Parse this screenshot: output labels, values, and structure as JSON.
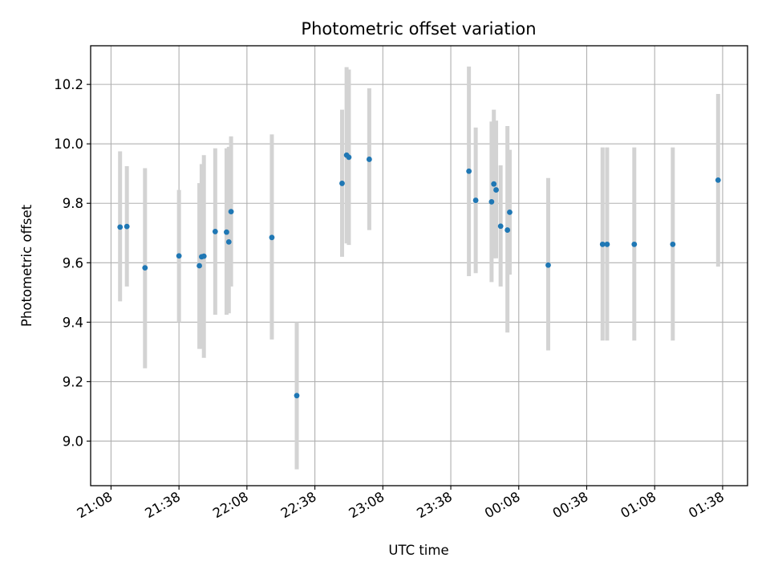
{
  "chart_data": {
    "type": "scatter",
    "title": "Photometric offset variation",
    "xlabel": "UTC time",
    "ylabel": "Photometric offset",
    "x_axis": {
      "kind": "time",
      "range": [
        "2023-01-01T20:59:00",
        "2023-01-02T01:49:00"
      ],
      "ticks": [
        {
          "t": "2023-01-01T21:08:00",
          "label": "21:08"
        },
        {
          "t": "2023-01-01T21:38:00",
          "label": "21:38"
        },
        {
          "t": "2023-01-01T22:08:00",
          "label": "22:08"
        },
        {
          "t": "2023-01-01T22:38:00",
          "label": "22:38"
        },
        {
          "t": "2023-01-01T23:08:00",
          "label": "23:08"
        },
        {
          "t": "2023-01-01T23:38:00",
          "label": "23:38"
        },
        {
          "t": "2023-01-02T00:08:00",
          "label": "00:08"
        },
        {
          "t": "2023-01-02T00:38:00",
          "label": "00:38"
        },
        {
          "t": "2023-01-02T01:08:00",
          "label": "01:08"
        },
        {
          "t": "2023-01-02T01:38:00",
          "label": "01:38"
        }
      ]
    },
    "y_axis": {
      "range": [
        8.85,
        10.33
      ],
      "ticks": [
        9.0,
        9.2,
        9.4,
        9.6,
        9.8,
        10.0,
        10.2
      ],
      "tick_labels": [
        "9.0",
        "9.2",
        "9.4",
        "9.6",
        "9.8",
        "10.0",
        "10.2"
      ]
    },
    "grid": true,
    "colors": {
      "point": "#1f77b4",
      "errorbar": "#d3d3d3",
      "grid": "#b0b0b0"
    },
    "points": [
      {
        "t": "2023-01-01T21:12:00",
        "y": 9.72,
        "lo": 9.47,
        "hi": 9.975
      },
      {
        "t": "2023-01-01T21:15:00",
        "y": 9.722,
        "lo": 9.52,
        "hi": 9.925
      },
      {
        "t": "2023-01-01T21:23:00",
        "y": 9.583,
        "lo": 9.245,
        "hi": 9.918
      },
      {
        "t": "2023-01-01T21:38:00",
        "y": 9.623,
        "lo": 9.4,
        "hi": 9.845
      },
      {
        "t": "2023-01-01T21:47:00",
        "y": 9.59,
        "lo": 9.31,
        "hi": 9.868
      },
      {
        "t": "2023-01-01T21:48:00",
        "y": 9.62,
        "lo": 9.31,
        "hi": 9.932
      },
      {
        "t": "2023-01-01T21:49:00",
        "y": 9.622,
        "lo": 9.28,
        "hi": 9.962
      },
      {
        "t": "2023-01-01T21:54:00",
        "y": 9.705,
        "lo": 9.425,
        "hi": 9.985
      },
      {
        "t": "2023-01-01T21:59:00",
        "y": 9.703,
        "lo": 9.425,
        "hi": 9.985
      },
      {
        "t": "2023-01-01T22:00:00",
        "y": 9.67,
        "lo": 9.43,
        "hi": 9.99
      },
      {
        "t": "2023-01-01T22:01:00",
        "y": 9.772,
        "lo": 9.52,
        "hi": 10.025
      },
      {
        "t": "2023-01-01T22:19:00",
        "y": 9.685,
        "lo": 9.342,
        "hi": 10.032
      },
      {
        "t": "2023-01-01T22:30:00",
        "y": 9.153,
        "lo": 8.905,
        "hi": 9.4
      },
      {
        "t": "2023-01-01T22:50:00",
        "y": 9.867,
        "lo": 9.62,
        "hi": 10.115
      },
      {
        "t": "2023-01-01T22:52:00",
        "y": 9.962,
        "lo": 9.665,
        "hi": 10.258
      },
      {
        "t": "2023-01-01T22:53:00",
        "y": 9.955,
        "lo": 9.66,
        "hi": 10.25
      },
      {
        "t": "2023-01-01T23:02:00",
        "y": 9.948,
        "lo": 9.71,
        "hi": 10.187
      },
      {
        "t": "2023-01-01T23:46:00",
        "y": 9.908,
        "lo": 9.555,
        "hi": 10.26
      },
      {
        "t": "2023-01-01T23:49:00",
        "y": 9.81,
        "lo": 9.565,
        "hi": 10.055
      },
      {
        "t": "2023-01-01T23:56:00",
        "y": 9.805,
        "lo": 9.535,
        "hi": 10.075
      },
      {
        "t": "2023-01-01T23:57:00",
        "y": 9.865,
        "lo": 9.615,
        "hi": 10.115
      },
      {
        "t": "2023-01-01T23:58:00",
        "y": 9.845,
        "lo": 9.615,
        "hi": 10.078
      },
      {
        "t": "2023-01-02T00:00:00",
        "y": 9.723,
        "lo": 9.52,
        "hi": 9.928
      },
      {
        "t": "2023-01-02T00:03:00",
        "y": 9.71,
        "lo": 9.365,
        "hi": 10.06
      },
      {
        "t": "2023-01-02T00:04:00",
        "y": 9.77,
        "lo": 9.56,
        "hi": 9.98
      },
      {
        "t": "2023-01-02T00:21:00",
        "y": 9.592,
        "lo": 9.305,
        "hi": 9.885
      },
      {
        "t": "2023-01-02T00:45:00",
        "y": 9.662,
        "lo": 9.338,
        "hi": 9.988
      },
      {
        "t": "2023-01-02T00:47:00",
        "y": 9.662,
        "lo": 9.338,
        "hi": 9.988
      },
      {
        "t": "2023-01-02T00:59:00",
        "y": 9.662,
        "lo": 9.338,
        "hi": 9.988
      },
      {
        "t": "2023-01-02T01:16:00",
        "y": 9.662,
        "lo": 9.338,
        "hi": 9.988
      },
      {
        "t": "2023-01-02T01:36:00",
        "y": 9.878,
        "lo": 9.587,
        "hi": 10.168
      }
    ]
  }
}
